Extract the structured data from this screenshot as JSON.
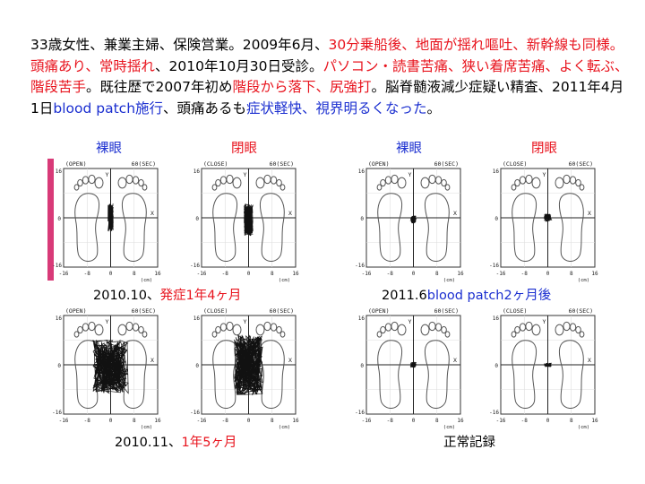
{
  "paragraph": [
    {
      "text": "33歳女性、兼業主婦、保険営業。2009年6月、",
      "color": "black"
    },
    {
      "text": "30分乗船後、地面が揺れ嘔吐、新幹線も同様。頭痛あり、常時揺れ",
      "color": "red"
    },
    {
      "text": "、2010年10月30日受診。",
      "color": "black"
    },
    {
      "text": "パソコン・読書苦痛、狭い着席苦痛、よく転ぶ、階段苦手",
      "color": "red"
    },
    {
      "text": "。既往歴で2007年初め",
      "color": "black"
    },
    {
      "text": "階段から落下、尻強打",
      "color": "red"
    },
    {
      "text": "。脳脊髄液減少症疑い精査、2011年4月1日",
      "color": "black"
    },
    {
      "text": "blood patch施行",
      "color": "blue"
    },
    {
      "text": "、頭痛あるも",
      "color": "black"
    },
    {
      "text": "症状軽快、視界明るくなった",
      "color": "blue"
    },
    {
      "text": "。",
      "color": "black"
    }
  ],
  "headers": {
    "left_open": "裸眼",
    "left_close": "閉眼",
    "right_open": "裸眼",
    "right_close": "閉眼"
  },
  "captions": {
    "top_left_prefix": "2010.10、",
    "top_left_colored": "発症1年4ヶ月",
    "top_right_prefix": "2011.6",
    "top_right_colored": "blood patch2ヶ月後",
    "bottom_left_prefix": "2010.11、",
    "bottom_left_colored": "1年5ヶ月",
    "bottom_right": "正常記録"
  },
  "plot_text": {
    "open": "(OPEN)",
    "close": "(CLOSE)",
    "duration": "60(SEC)",
    "y_axis": "Y",
    "x_axis": "X",
    "unit": "(cm)",
    "tick_top": "16",
    "tick_bottom": "-16",
    "tick_neg16": "-16",
    "tick_neg8": "-8",
    "tick_zero": "0",
    "tick_8": "8",
    "tick_16": "16"
  },
  "colors": {
    "red": "#e8141e",
    "blue": "#1b2fd0",
    "strip": "#d83a78"
  }
}
